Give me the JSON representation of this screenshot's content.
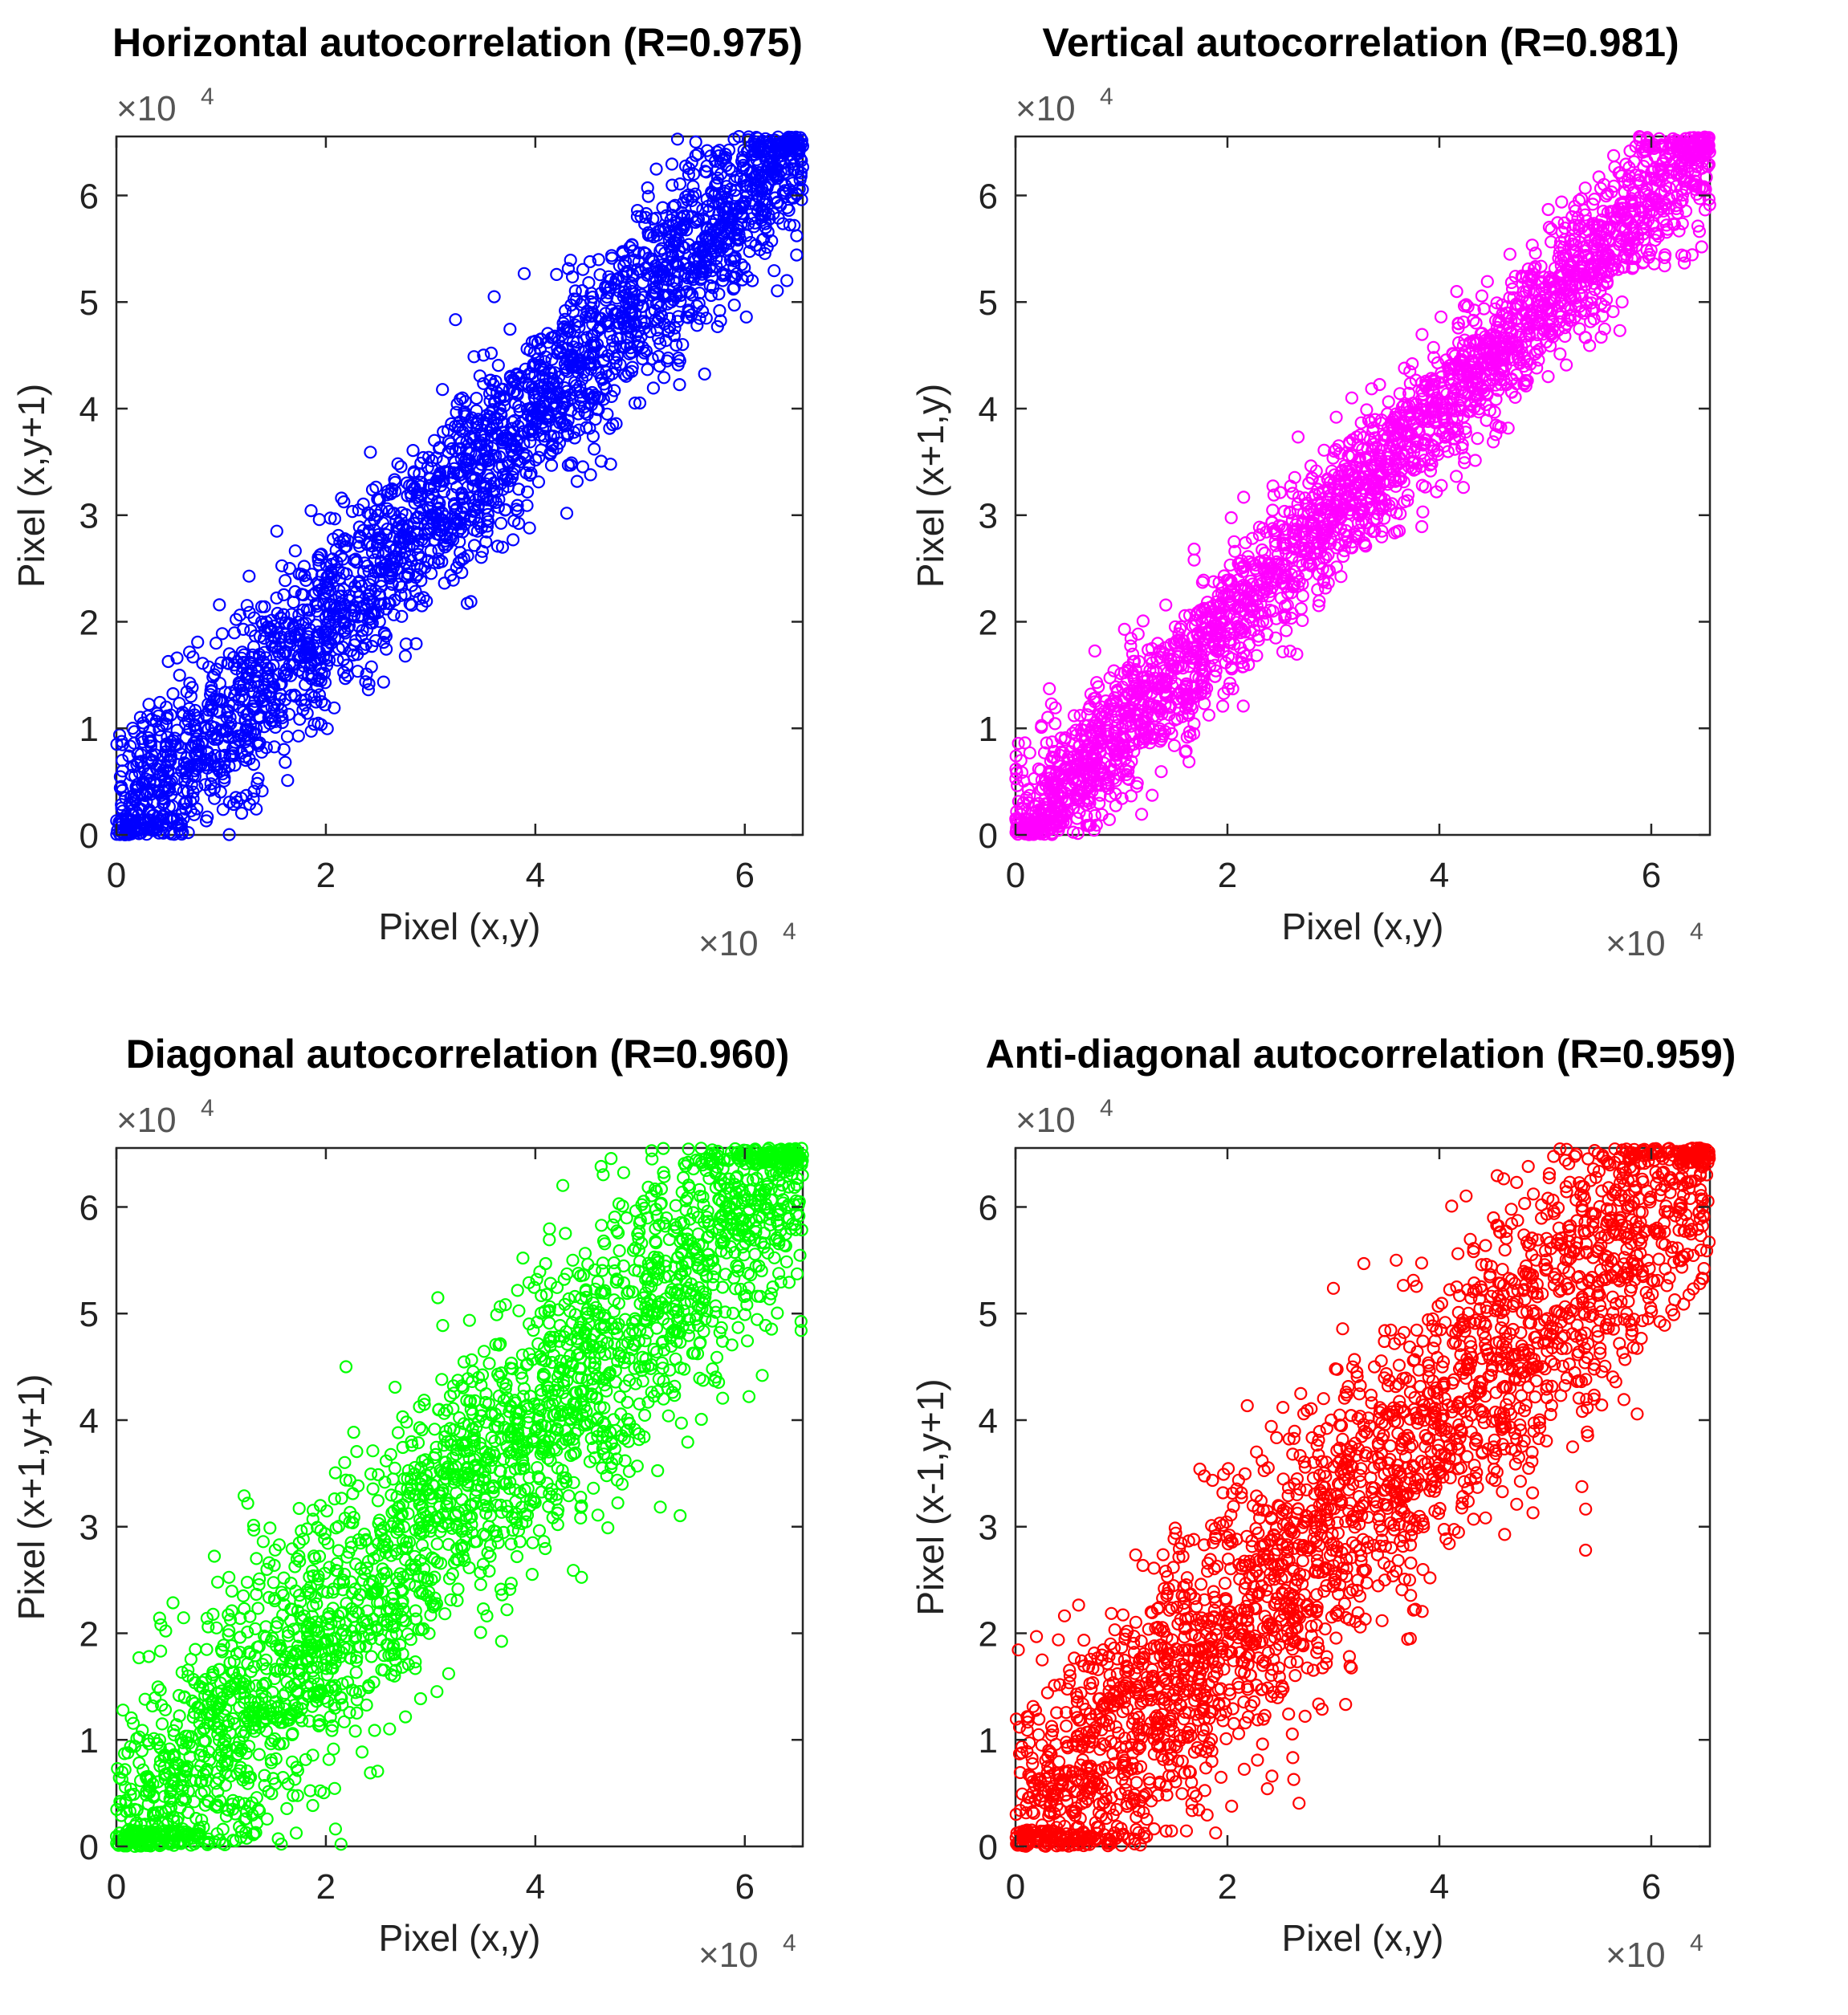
{
  "figure": {
    "description_free": true
  },
  "chart_data": [
    {
      "type": "scatter",
      "title": "Horizontal autocorrelation (R=0.975)",
      "xlabel": "Pixel (x,y)",
      "ylabel": "Pixel (x,y+1)",
      "xlim": [
        0,
        65535
      ],
      "ylim": [
        0,
        65535
      ],
      "xticks": [
        0,
        20000,
        40000,
        60000
      ],
      "yticks": [
        0,
        10000,
        20000,
        30000,
        40000,
        50000,
        60000
      ],
      "xtick_labels": [
        "0",
        "2",
        "4",
        "6"
      ],
      "ytick_labels": [
        "0",
        "1",
        "2",
        "3",
        "4",
        "5",
        "6"
      ],
      "x_multiplier": {
        "base": "×10",
        "exponent": "4"
      },
      "y_multiplier": {
        "base": "×10",
        "exponent": "4"
      },
      "marker": "circle",
      "color": "#0000ff",
      "R": 0.975,
      "n_points": 2600,
      "seed": 11
    },
    {
      "type": "scatter",
      "title": "Vertical autocorrelation (R=0.981)",
      "xlabel": "Pixel (x,y)",
      "ylabel": "Pixel (x+1,y)",
      "xlim": [
        0,
        65535
      ],
      "ylim": [
        0,
        65535
      ],
      "xticks": [
        0,
        20000,
        40000,
        60000
      ],
      "yticks": [
        0,
        10000,
        20000,
        30000,
        40000,
        50000,
        60000
      ],
      "xtick_labels": [
        "0",
        "2",
        "4",
        "6"
      ],
      "ytick_labels": [
        "0",
        "1",
        "2",
        "3",
        "4",
        "5",
        "6"
      ],
      "x_multiplier": {
        "base": "×10",
        "exponent": "4"
      },
      "y_multiplier": {
        "base": "×10",
        "exponent": "4"
      },
      "marker": "circle",
      "color": "#ff00ff",
      "R": 0.981,
      "n_points": 2600,
      "seed": 23
    },
    {
      "type": "scatter",
      "title": "Diagonal autocorrelation (R=0.960)",
      "xlabel": "Pixel (x,y)",
      "ylabel": "Pixel (x+1,y+1)",
      "xlim": [
        0,
        65535
      ],
      "ylim": [
        0,
        65535
      ],
      "xticks": [
        0,
        20000,
        40000,
        60000
      ],
      "yticks": [
        0,
        10000,
        20000,
        30000,
        40000,
        50000,
        60000
      ],
      "xtick_labels": [
        "0",
        "2",
        "4",
        "6"
      ],
      "ytick_labels": [
        "0",
        "1",
        "2",
        "3",
        "4",
        "5",
        "6"
      ],
      "x_multiplier": {
        "base": "×10",
        "exponent": "4"
      },
      "y_multiplier": {
        "base": "×10",
        "exponent": "4"
      },
      "marker": "circle",
      "color": "#00ff00",
      "R": 0.96,
      "n_points": 2600,
      "seed": 37
    },
    {
      "type": "scatter",
      "title": "Anti-diagonal autocorrelation (R=0.959)",
      "xlabel": "Pixel (x,y)",
      "ylabel": "Pixel (x-1,y+1)",
      "xlim": [
        0,
        65535
      ],
      "ylim": [
        0,
        65535
      ],
      "xticks": [
        0,
        20000,
        40000,
        60000
      ],
      "yticks": [
        0,
        10000,
        20000,
        30000,
        40000,
        50000,
        60000
      ],
      "xtick_labels": [
        "0",
        "2",
        "4",
        "6"
      ],
      "ytick_labels": [
        "0",
        "1",
        "2",
        "3",
        "4",
        "5",
        "6"
      ],
      "x_multiplier": {
        "base": "×10",
        "exponent": "4"
      },
      "y_multiplier": {
        "base": "×10",
        "exponent": "4"
      },
      "marker": "circle",
      "color": "#ff0000",
      "R": 0.959,
      "n_points": 2600,
      "seed": 53
    }
  ]
}
